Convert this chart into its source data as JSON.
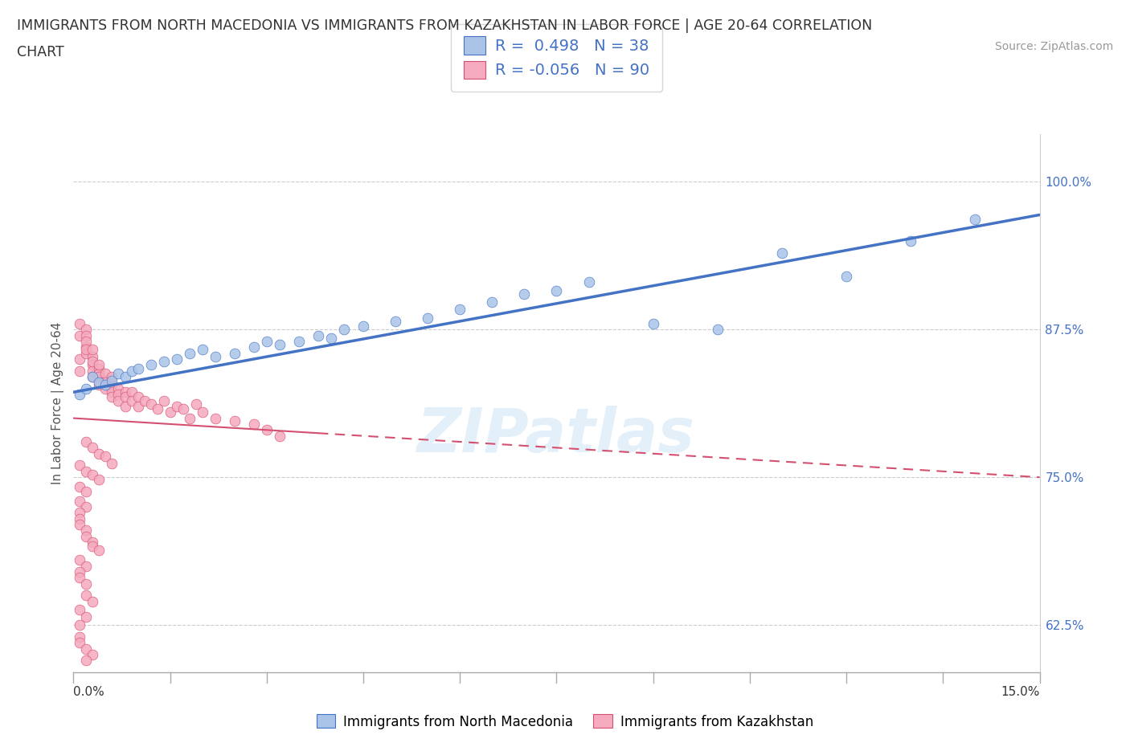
{
  "title_line1": "IMMIGRANTS FROM NORTH MACEDONIA VS IMMIGRANTS FROM KAZAKHSTAN IN LABOR FORCE | AGE 20-64 CORRELATION",
  "title_line2": "CHART",
  "source_text": "Source: ZipAtlas.com",
  "ytick_labels": [
    "62.5%",
    "75.0%",
    "87.5%",
    "100.0%"
  ],
  "ytick_values": [
    0.625,
    0.75,
    0.875,
    1.0
  ],
  "xlim": [
    0.0,
    0.15
  ],
  "ylim": [
    0.585,
    1.04
  ],
  "legend_label1": "Immigrants from North Macedonia",
  "legend_label2": "Immigrants from Kazakhstan",
  "r1": "0.498",
  "n1": "38",
  "r2": "-0.056",
  "n2": "90",
  "color_blue": "#aac4e8",
  "color_pink": "#f5aabe",
  "line_color_blue": "#4472c4",
  "line_color_pink": "#d45070",
  "blue_trend_x0": 0.0,
  "blue_trend_y0": 0.822,
  "blue_trend_x1": 0.15,
  "blue_trend_y1": 0.972,
  "pink_trend_x0": 0.0,
  "pink_trend_y0": 0.8,
  "pink_trend_x1": 0.15,
  "pink_trend_y1": 0.75,
  "blue_points_x": [
    0.001,
    0.002,
    0.003,
    0.004,
    0.005,
    0.006,
    0.007,
    0.008,
    0.009,
    0.01,
    0.012,
    0.014,
    0.016,
    0.018,
    0.02,
    0.022,
    0.025,
    0.028,
    0.03,
    0.032,
    0.035,
    0.038,
    0.04,
    0.042,
    0.045,
    0.05,
    0.055,
    0.06,
    0.065,
    0.07,
    0.075,
    0.08,
    0.09,
    0.1,
    0.11,
    0.12,
    0.13,
    0.14
  ],
  "blue_points_y": [
    0.82,
    0.825,
    0.835,
    0.83,
    0.828,
    0.832,
    0.838,
    0.835,
    0.84,
    0.842,
    0.845,
    0.848,
    0.85,
    0.855,
    0.858,
    0.852,
    0.855,
    0.86,
    0.865,
    0.862,
    0.865,
    0.87,
    0.868,
    0.875,
    0.878,
    0.882,
    0.885,
    0.892,
    0.898,
    0.905,
    0.908,
    0.915,
    0.88,
    0.875,
    0.94,
    0.92,
    0.95,
    0.968
  ],
  "pink_points_x": [
    0.001,
    0.001,
    0.001,
    0.001,
    0.002,
    0.002,
    0.002,
    0.002,
    0.002,
    0.002,
    0.003,
    0.003,
    0.003,
    0.003,
    0.003,
    0.003,
    0.004,
    0.004,
    0.004,
    0.004,
    0.004,
    0.005,
    0.005,
    0.005,
    0.005,
    0.006,
    0.006,
    0.006,
    0.006,
    0.007,
    0.007,
    0.007,
    0.008,
    0.008,
    0.008,
    0.009,
    0.009,
    0.01,
    0.01,
    0.011,
    0.012,
    0.013,
    0.014,
    0.015,
    0.016,
    0.017,
    0.018,
    0.019,
    0.02,
    0.022,
    0.025,
    0.028,
    0.03,
    0.032,
    0.002,
    0.003,
    0.004,
    0.005,
    0.006,
    0.001,
    0.002,
    0.003,
    0.004,
    0.001,
    0.002,
    0.001,
    0.002,
    0.001,
    0.001,
    0.001,
    0.002,
    0.002,
    0.003,
    0.003,
    0.004,
    0.001,
    0.002,
    0.001,
    0.001,
    0.002,
    0.002,
    0.003,
    0.001,
    0.002,
    0.001,
    0.001,
    0.001,
    0.002,
    0.003,
    0.002
  ],
  "pink_points_y": [
    0.85,
    0.84,
    0.87,
    0.88,
    0.86,
    0.855,
    0.875,
    0.87,
    0.865,
    0.858,
    0.852,
    0.858,
    0.845,
    0.84,
    0.835,
    0.848,
    0.842,
    0.838,
    0.845,
    0.835,
    0.828,
    0.832,
    0.838,
    0.825,
    0.83,
    0.828,
    0.822,
    0.835,
    0.818,
    0.825,
    0.82,
    0.815,
    0.822,
    0.818,
    0.81,
    0.822,
    0.815,
    0.818,
    0.81,
    0.815,
    0.812,
    0.808,
    0.815,
    0.805,
    0.81,
    0.808,
    0.8,
    0.812,
    0.805,
    0.8,
    0.798,
    0.795,
    0.79,
    0.785,
    0.78,
    0.775,
    0.77,
    0.768,
    0.762,
    0.76,
    0.755,
    0.752,
    0.748,
    0.742,
    0.738,
    0.73,
    0.725,
    0.72,
    0.715,
    0.71,
    0.705,
    0.7,
    0.695,
    0.692,
    0.688,
    0.68,
    0.675,
    0.67,
    0.665,
    0.66,
    0.65,
    0.645,
    0.638,
    0.632,
    0.625,
    0.615,
    0.61,
    0.605,
    0.6,
    0.595
  ]
}
